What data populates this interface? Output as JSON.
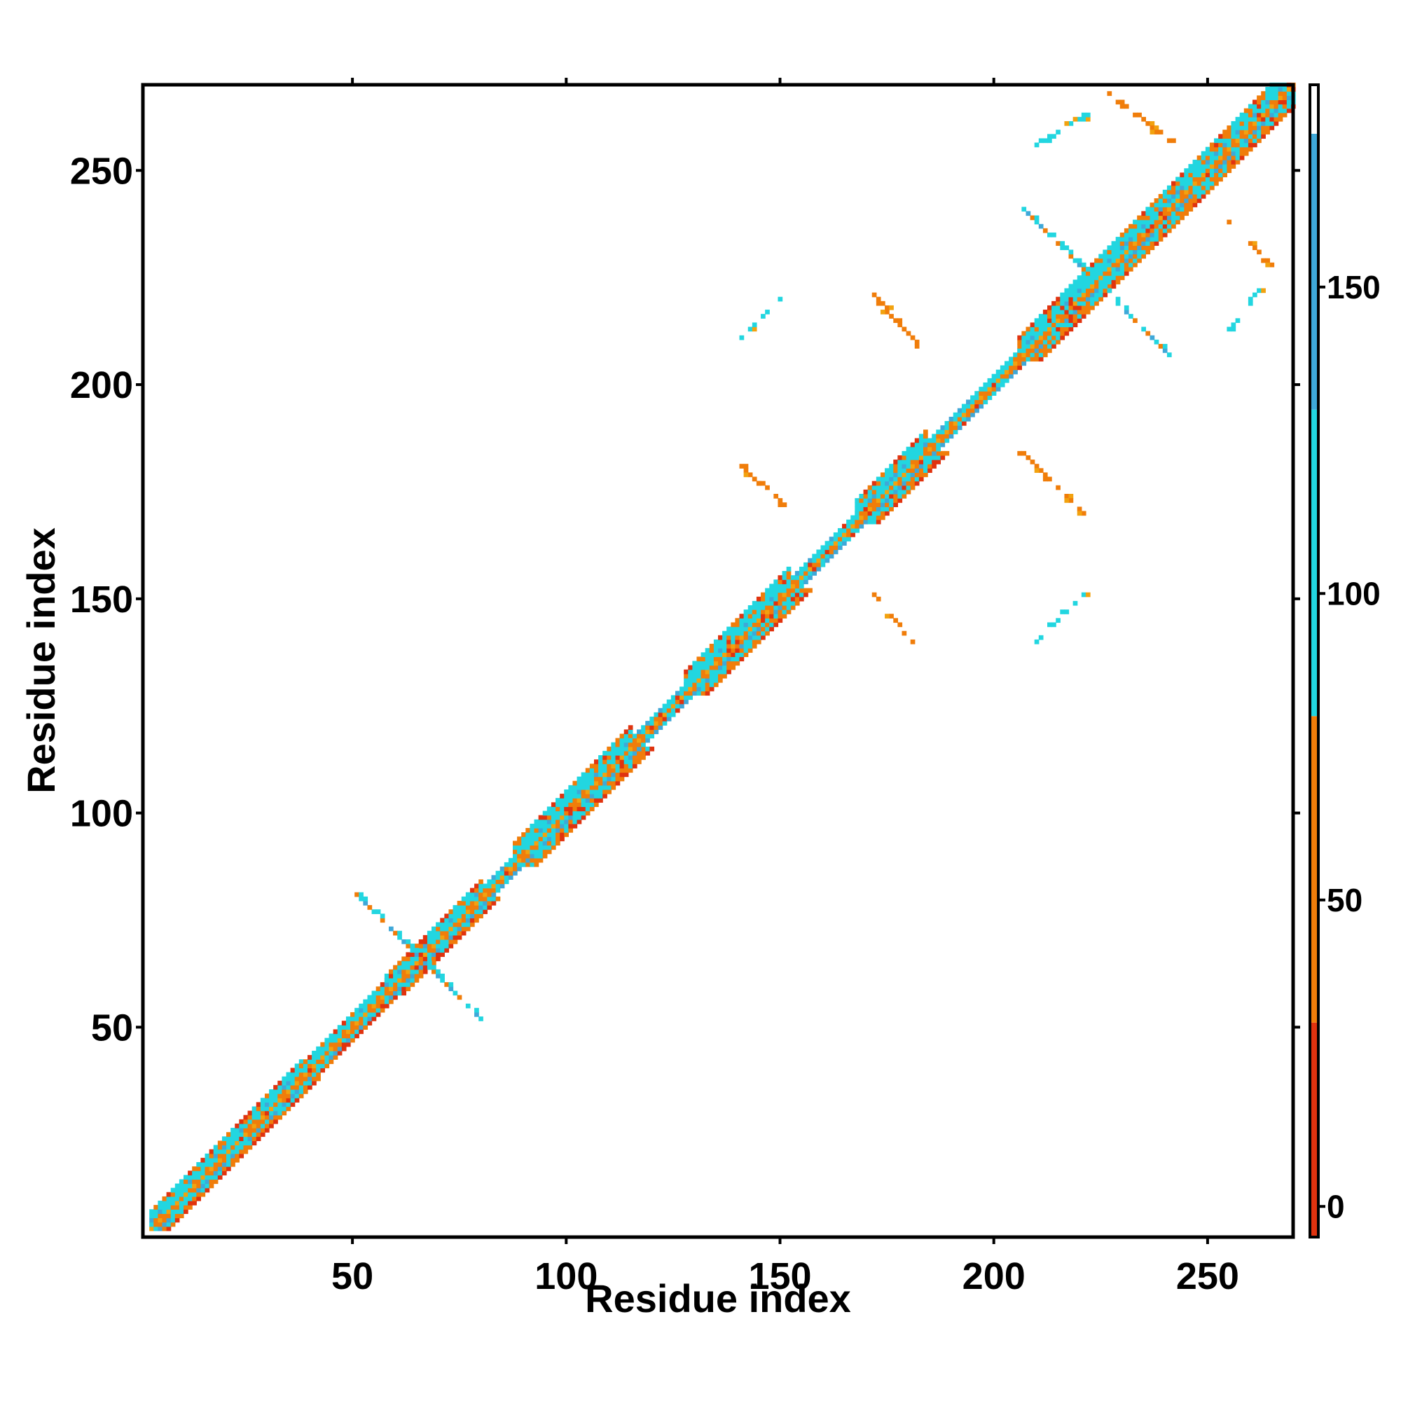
{
  "chart_data": {
    "type": "heatmap",
    "title": "",
    "xlabel": "Residue index",
    "ylabel": "Residue index",
    "xlim": [
      1,
      270
    ],
    "ylim": [
      1,
      270
    ],
    "x_ticks": [
      50,
      100,
      150,
      200,
      250
    ],
    "y_ticks": [
      50,
      100,
      150,
      200,
      250
    ],
    "colorbar": {
      "range": [
        -5,
        183
      ],
      "ticks": [
        0,
        50,
        100,
        150
      ],
      "color_bins": [
        {
          "from": -5,
          "to": 30,
          "color": "#e0330f"
        },
        {
          "from": 30,
          "to": 80,
          "color": "#f07d0a"
        },
        {
          "from": 80,
          "to": 130,
          "color": "#22d6e0"
        },
        {
          "from": 130,
          "to": 175,
          "color": "#3fa8d8"
        },
        {
          "from": 175,
          "to": 183,
          "color": "#ffffff"
        }
      ]
    },
    "colors": {
      "red": "#e0330f",
      "orange": "#f07d0a",
      "amber": "#f2a20f",
      "cyan": "#22d6e0",
      "steel": "#3fa8d8"
    },
    "diagonal_bands": [
      {
        "start": 3,
        "end": 38,
        "width": 4
      },
      {
        "start": 38,
        "end": 58,
        "width": 3
      },
      {
        "start": 58,
        "end": 80,
        "width": 4
      },
      {
        "start": 80,
        "end": 88,
        "width": 2
      },
      {
        "start": 88,
        "end": 115,
        "width": 5
      },
      {
        "start": 115,
        "end": 128,
        "width": 2
      },
      {
        "start": 128,
        "end": 152,
        "width": 5
      },
      {
        "start": 152,
        "end": 168,
        "width": 2
      },
      {
        "start": 168,
        "end": 184,
        "width": 5
      },
      {
        "start": 184,
        "end": 206,
        "width": 2
      },
      {
        "start": 206,
        "end": 270,
        "width": 5
      }
    ],
    "off_diagonal_contacts": [
      {
        "x_start": 140,
        "y_start": 210,
        "x_end": 151,
        "y_end": 221,
        "orientation": "parallel",
        "color": "cyan"
      },
      {
        "x_start": 172,
        "y_start": 221,
        "x_end": 185,
        "y_end": 206,
        "orientation": "antiparallel",
        "color": "orange"
      },
      {
        "x_start": 141,
        "y_start": 181,
        "x_end": 151,
        "y_end": 172,
        "orientation": "antiparallel",
        "color": "orange"
      },
      {
        "x_start": 206,
        "y_start": 185,
        "x_end": 221,
        "y_end": 170,
        "orientation": "antiparallel",
        "color": "orange"
      },
      {
        "x_start": 172,
        "y_start": 151,
        "x_end": 181,
        "y_end": 140,
        "orientation": "antiparallel",
        "color": "orange"
      },
      {
        "x_start": 210,
        "y_start": 140,
        "x_end": 221,
        "y_end": 151,
        "orientation": "parallel",
        "color": "cyan"
      },
      {
        "x_start": 210,
        "y_start": 256,
        "x_end": 222,
        "y_end": 263,
        "orientation": "parallel",
        "color": "cyan"
      },
      {
        "x_start": 227,
        "y_start": 268,
        "x_end": 241,
        "y_end": 257,
        "orientation": "antiparallel",
        "color": "orange"
      },
      {
        "x_start": 254,
        "y_start": 239,
        "x_end": 265,
        "y_end": 228,
        "orientation": "antiparallel",
        "color": "orange"
      },
      {
        "x_start": 255,
        "y_start": 213,
        "x_end": 262,
        "y_end": 222,
        "orientation": "parallel",
        "color": "cyan"
      }
    ],
    "contact_clusters": [
      {
        "center": [
          66,
          66
        ],
        "extent": 15
      },
      {
        "center": [
          224,
          224
        ],
        "extent": 17
      }
    ]
  }
}
